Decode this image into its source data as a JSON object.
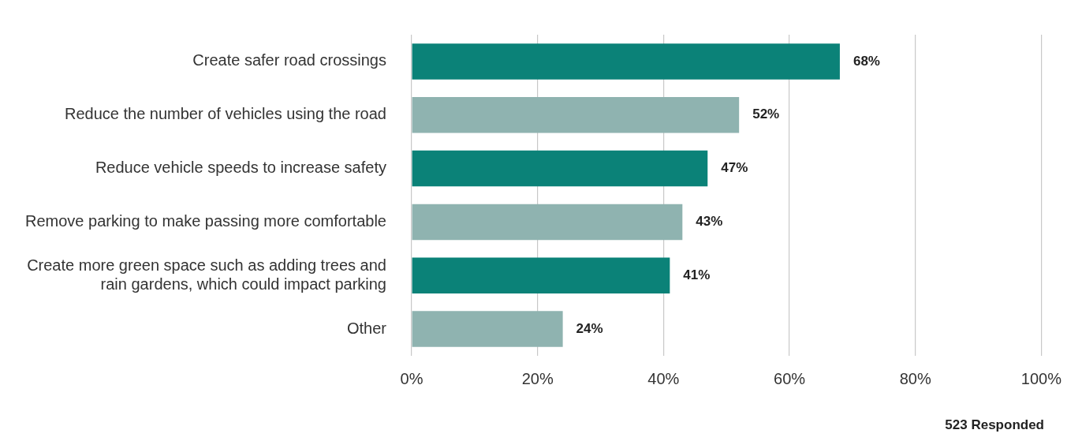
{
  "chart_data": {
    "type": "bar",
    "orientation": "horizontal",
    "categories": [
      "Create safer road crossings",
      "Reduce the number of vehicles using the road",
      "Reduce vehicle speeds to increase safety",
      "Remove parking to make passing more comfortable",
      "Create more green space such as adding trees and rain gardens, which could impact parking",
      "Other"
    ],
    "values": [
      68,
      52,
      47,
      43,
      41,
      24
    ],
    "colors": [
      "#0b8278",
      "#8fb3b0",
      "#0b8278",
      "#8fb3b0",
      "#0b8278",
      "#8fb3b0"
    ],
    "value_labels": [
      "68%",
      "52%",
      "47%",
      "43%",
      "41%",
      "24%"
    ],
    "xlim": [
      0,
      100
    ],
    "xticks": [
      {
        "value": 0,
        "label": "0%"
      },
      {
        "value": 20,
        "label": "20%"
      },
      {
        "value": 40,
        "label": "40%"
      },
      {
        "value": 60,
        "label": "60%"
      },
      {
        "value": 80,
        "label": "80%"
      },
      {
        "value": 100,
        "label": "100%"
      }
    ],
    "grid": "x",
    "legend": false,
    "annotations": [
      "523 Responded"
    ]
  }
}
